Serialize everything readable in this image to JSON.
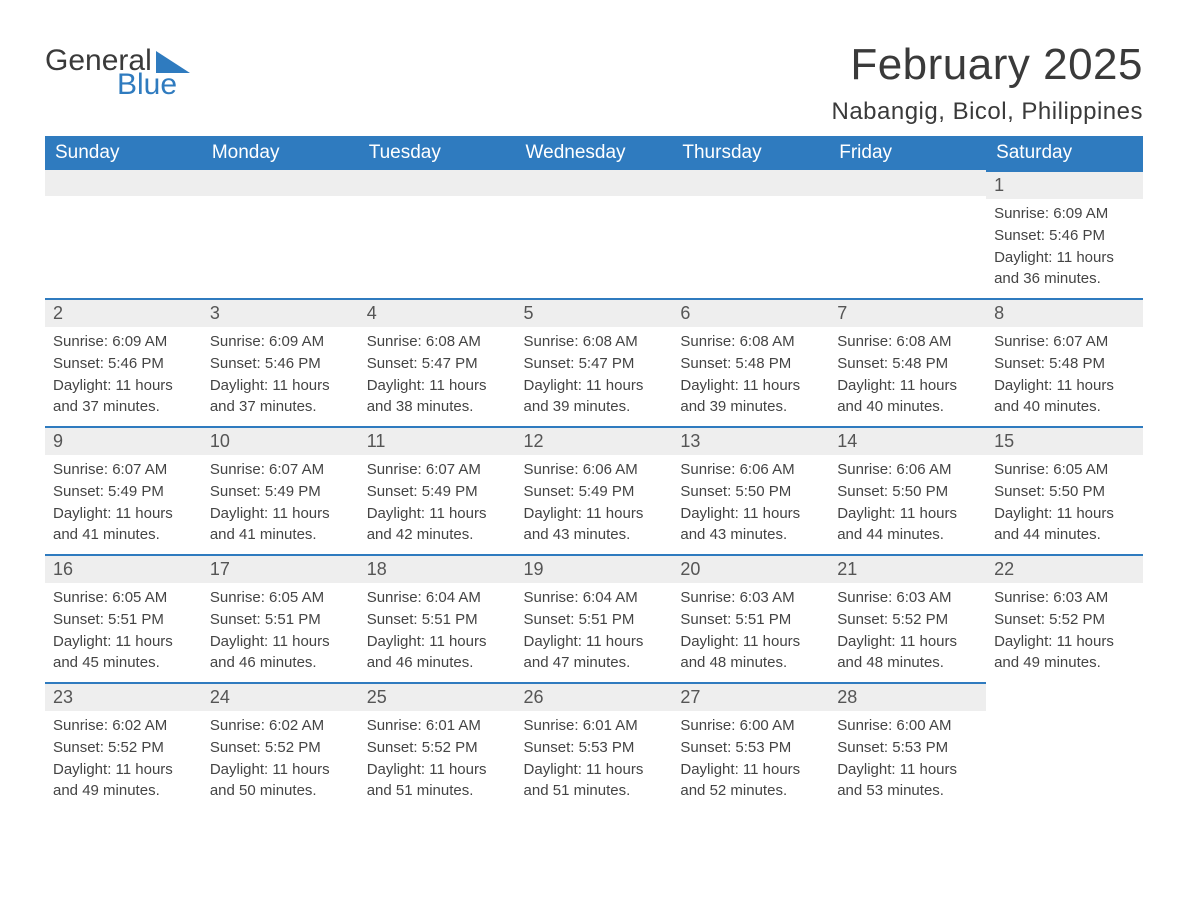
{
  "brand": {
    "part1": "General",
    "part2": "Blue"
  },
  "header": {
    "month_title": "February 2025",
    "location": "Nabangig, Bicol, Philippines"
  },
  "colors": {
    "brand_blue": "#2f7bbf",
    "text_dark": "#3a3a3a",
    "row_gray": "#eeeeee",
    "body_text": "#444444"
  },
  "weekday_labels": [
    "Sunday",
    "Monday",
    "Tuesday",
    "Wednesday",
    "Thursday",
    "Friday",
    "Saturday"
  ],
  "weeks": [
    [
      null,
      null,
      null,
      null,
      null,
      null,
      {
        "n": "1",
        "sunrise": "Sunrise: 6:09 AM",
        "sunset": "Sunset: 5:46 PM",
        "daylight": "Daylight: 11 hours and 36 minutes."
      }
    ],
    [
      {
        "n": "2",
        "sunrise": "Sunrise: 6:09 AM",
        "sunset": "Sunset: 5:46 PM",
        "daylight": "Daylight: 11 hours and 37 minutes."
      },
      {
        "n": "3",
        "sunrise": "Sunrise: 6:09 AM",
        "sunset": "Sunset: 5:46 PM",
        "daylight": "Daylight: 11 hours and 37 minutes."
      },
      {
        "n": "4",
        "sunrise": "Sunrise: 6:08 AM",
        "sunset": "Sunset: 5:47 PM",
        "daylight": "Daylight: 11 hours and 38 minutes."
      },
      {
        "n": "5",
        "sunrise": "Sunrise: 6:08 AM",
        "sunset": "Sunset: 5:47 PM",
        "daylight": "Daylight: 11 hours and 39 minutes."
      },
      {
        "n": "6",
        "sunrise": "Sunrise: 6:08 AM",
        "sunset": "Sunset: 5:48 PM",
        "daylight": "Daylight: 11 hours and 39 minutes."
      },
      {
        "n": "7",
        "sunrise": "Sunrise: 6:08 AM",
        "sunset": "Sunset: 5:48 PM",
        "daylight": "Daylight: 11 hours and 40 minutes."
      },
      {
        "n": "8",
        "sunrise": "Sunrise: 6:07 AM",
        "sunset": "Sunset: 5:48 PM",
        "daylight": "Daylight: 11 hours and 40 minutes."
      }
    ],
    [
      {
        "n": "9",
        "sunrise": "Sunrise: 6:07 AM",
        "sunset": "Sunset: 5:49 PM",
        "daylight": "Daylight: 11 hours and 41 minutes."
      },
      {
        "n": "10",
        "sunrise": "Sunrise: 6:07 AM",
        "sunset": "Sunset: 5:49 PM",
        "daylight": "Daylight: 11 hours and 41 minutes."
      },
      {
        "n": "11",
        "sunrise": "Sunrise: 6:07 AM",
        "sunset": "Sunset: 5:49 PM",
        "daylight": "Daylight: 11 hours and 42 minutes."
      },
      {
        "n": "12",
        "sunrise": "Sunrise: 6:06 AM",
        "sunset": "Sunset: 5:49 PM",
        "daylight": "Daylight: 11 hours and 43 minutes."
      },
      {
        "n": "13",
        "sunrise": "Sunrise: 6:06 AM",
        "sunset": "Sunset: 5:50 PM",
        "daylight": "Daylight: 11 hours and 43 minutes."
      },
      {
        "n": "14",
        "sunrise": "Sunrise: 6:06 AM",
        "sunset": "Sunset: 5:50 PM",
        "daylight": "Daylight: 11 hours and 44 minutes."
      },
      {
        "n": "15",
        "sunrise": "Sunrise: 6:05 AM",
        "sunset": "Sunset: 5:50 PM",
        "daylight": "Daylight: 11 hours and 44 minutes."
      }
    ],
    [
      {
        "n": "16",
        "sunrise": "Sunrise: 6:05 AM",
        "sunset": "Sunset: 5:51 PM",
        "daylight": "Daylight: 11 hours and 45 minutes."
      },
      {
        "n": "17",
        "sunrise": "Sunrise: 6:05 AM",
        "sunset": "Sunset: 5:51 PM",
        "daylight": "Daylight: 11 hours and 46 minutes."
      },
      {
        "n": "18",
        "sunrise": "Sunrise: 6:04 AM",
        "sunset": "Sunset: 5:51 PM",
        "daylight": "Daylight: 11 hours and 46 minutes."
      },
      {
        "n": "19",
        "sunrise": "Sunrise: 6:04 AM",
        "sunset": "Sunset: 5:51 PM",
        "daylight": "Daylight: 11 hours and 47 minutes."
      },
      {
        "n": "20",
        "sunrise": "Sunrise: 6:03 AM",
        "sunset": "Sunset: 5:51 PM",
        "daylight": "Daylight: 11 hours and 48 minutes."
      },
      {
        "n": "21",
        "sunrise": "Sunrise: 6:03 AM",
        "sunset": "Sunset: 5:52 PM",
        "daylight": "Daylight: 11 hours and 48 minutes."
      },
      {
        "n": "22",
        "sunrise": "Sunrise: 6:03 AM",
        "sunset": "Sunset: 5:52 PM",
        "daylight": "Daylight: 11 hours and 49 minutes."
      }
    ],
    [
      {
        "n": "23",
        "sunrise": "Sunrise: 6:02 AM",
        "sunset": "Sunset: 5:52 PM",
        "daylight": "Daylight: 11 hours and 49 minutes."
      },
      {
        "n": "24",
        "sunrise": "Sunrise: 6:02 AM",
        "sunset": "Sunset: 5:52 PM",
        "daylight": "Daylight: 11 hours and 50 minutes."
      },
      {
        "n": "25",
        "sunrise": "Sunrise: 6:01 AM",
        "sunset": "Sunset: 5:52 PM",
        "daylight": "Daylight: 11 hours and 51 minutes."
      },
      {
        "n": "26",
        "sunrise": "Sunrise: 6:01 AM",
        "sunset": "Sunset: 5:53 PM",
        "daylight": "Daylight: 11 hours and 51 minutes."
      },
      {
        "n": "27",
        "sunrise": "Sunrise: 6:00 AM",
        "sunset": "Sunset: 5:53 PM",
        "daylight": "Daylight: 11 hours and 52 minutes."
      },
      {
        "n": "28",
        "sunrise": "Sunrise: 6:00 AM",
        "sunset": "Sunset: 5:53 PM",
        "daylight": "Daylight: 11 hours and 53 minutes."
      },
      null
    ]
  ]
}
